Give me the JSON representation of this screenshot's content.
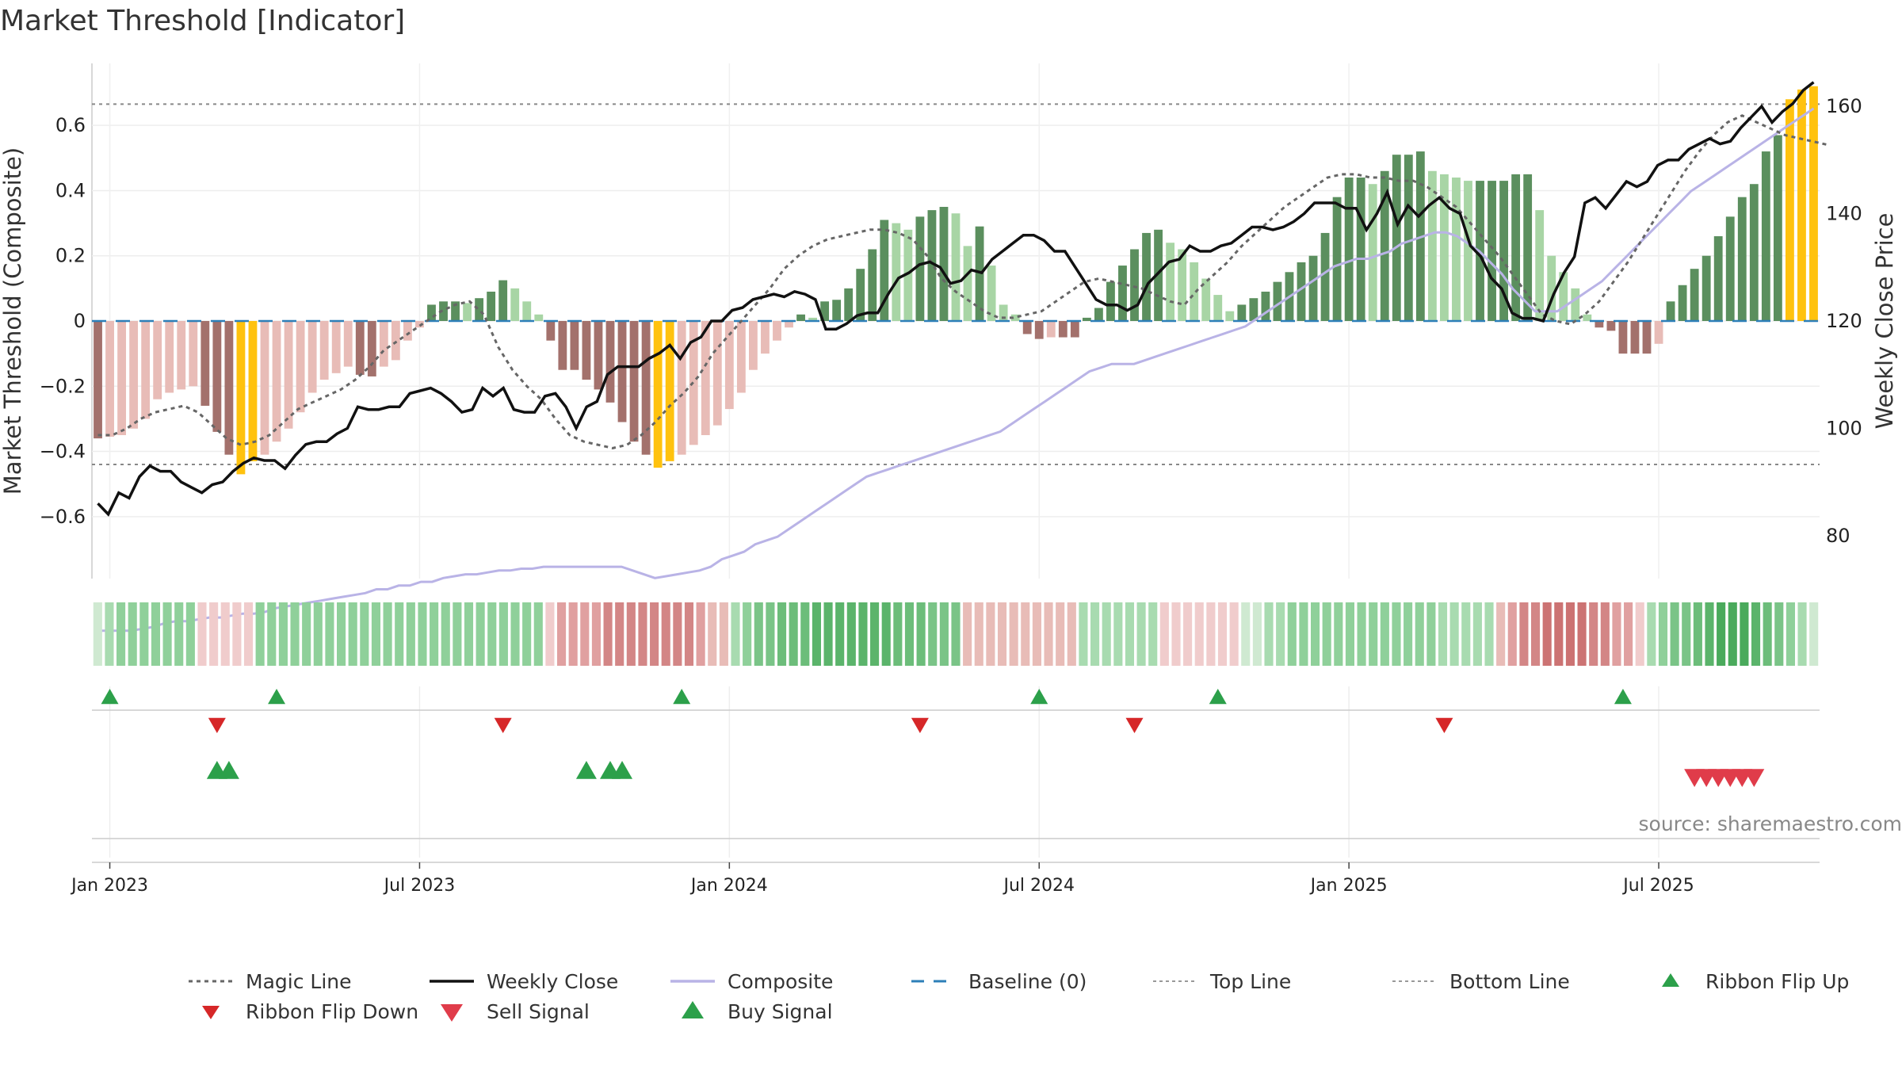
{
  "chart_data": {
    "type": "bar",
    "title": "Market Threshold [Indicator]",
    "y_left_label": "Market Threshold (Composite)",
    "y_right_label": "Weekly Close Price",
    "y_left_ticks": [
      "0.6",
      "0.4",
      "0.2",
      "0",
      "−0.2",
      "−0.4",
      "−0.6"
    ],
    "y_left_tick_values": [
      0.6,
      0.4,
      0.2,
      0,
      -0.2,
      -0.4,
      -0.6
    ],
    "y_right_ticks": [
      "160",
      "140",
      "120",
      "100",
      "80"
    ],
    "y_right_tick_values": [
      160,
      140,
      120,
      100,
      80
    ],
    "ylim_left": [
      -0.79,
      0.79
    ],
    "ylim_right": [
      72,
      168
    ],
    "x_ticks": [
      "Jan 2023",
      "Jul 2023",
      "Jan 2024",
      "Jul 2024",
      "Jan 2025",
      "Jul 2025"
    ],
    "x_tick_weeks": [
      1,
      27,
      53,
      79,
      105,
      131
    ],
    "top_line": 0.665,
    "bottom_line": -0.44,
    "baseline": 0,
    "grid": true,
    "weeks": 145,
    "composite_bars": [
      -0.36,
      -0.355,
      -0.35,
      -0.33,
      -0.3,
      -0.24,
      -0.22,
      -0.21,
      -0.2,
      -0.26,
      -0.34,
      -0.41,
      -0.47,
      -0.43,
      -0.41,
      -0.37,
      -0.33,
      -0.28,
      -0.22,
      -0.18,
      -0.16,
      -0.14,
      -0.165,
      -0.17,
      -0.14,
      -0.12,
      -0.06,
      -0.02,
      0.05,
      0.06,
      0.06,
      0.055,
      0.07,
      0.09,
      0.125,
      0.1,
      0.06,
      0.02,
      -0.06,
      -0.15,
      -0.15,
      -0.18,
      -0.21,
      -0.25,
      -0.31,
      -0.37,
      -0.41,
      -0.45,
      -0.43,
      -0.41,
      -0.38,
      -0.35,
      -0.32,
      -0.27,
      -0.22,
      -0.15,
      -0.1,
      -0.06,
      -0.02,
      0.02,
      0.01,
      0.06,
      0.065,
      0.1,
      0.16,
      0.22,
      0.31,
      0.3,
      0.28,
      0.32,
      0.34,
      0.35,
      0.33,
      0.23,
      0.29,
      0.17,
      0.05,
      0.02,
      -0.04,
      -0.055,
      -0.05,
      -0.05,
      -0.05,
      0.01,
      0.04,
      0.12,
      0.17,
      0.22,
      0.27,
      0.28,
      0.24,
      0.22,
      0.18,
      0.13,
      0.08,
      0.03,
      0.05,
      0.07,
      0.09,
      0.12,
      0.15,
      0.18,
      0.2,
      0.27,
      0.38,
      0.44,
      0.44,
      0.42,
      0.46,
      0.51,
      0.51,
      0.52,
      0.46,
      0.45,
      0.44,
      0.43,
      0.43,
      0.43,
      0.43,
      0.45,
      0.45,
      0.34,
      0.2,
      0.15,
      0.1,
      0.02,
      -0.02,
      -0.03,
      -0.1,
      -0.1,
      -0.1,
      -0.07,
      0.06,
      0.11,
      0.16,
      0.2,
      0.26,
      0.32,
      0.38,
      0.42,
      0.52,
      0.57,
      0.68,
      0.71,
      0.72,
      0.69,
      0.67,
      0.65,
      0.6,
      0.55,
      0.48,
      0.48
    ],
    "bar_colors": {
      "strong_up": "#5b8f5e",
      "weak_up": "#a8d5a5",
      "strong_down": "#a3716c",
      "weak_down": "#e8bcb7",
      "extreme": "#ffc20e"
    },
    "weekly_close": [
      86,
      84,
      88,
      87,
      91,
      93,
      92,
      92,
      90,
      89,
      88,
      89.5,
      90,
      92,
      93.5,
      94.5,
      94,
      94,
      92.5,
      95,
      97,
      97.5,
      97.5,
      99,
      100,
      104,
      103.5,
      103.5,
      104,
      104,
      106.5,
      107,
      107.5,
      106.5,
      105,
      103,
      103.5,
      107.5,
      106,
      107.5,
      103.5,
      103,
      103,
      106,
      106.5,
      104,
      100,
      104,
      105,
      110,
      111.5,
      111.5,
      111.5,
      113,
      114,
      115.5,
      113,
      116,
      117,
      120,
      120,
      122,
      122.5,
      124,
      124.5,
      125,
      124.5,
      125.5,
      125,
      124,
      118.5,
      118.5,
      119.5,
      121,
      121.5,
      121.5,
      125,
      128,
      129,
      130.5,
      131,
      130,
      127,
      127.5,
      129.5,
      129,
      131.5,
      133,
      134.5,
      136,
      136,
      135,
      133,
      133,
      130,
      127,
      124,
      123,
      123,
      122,
      123,
      127,
      129,
      131,
      131.5,
      134,
      133,
      133,
      134,
      134.5,
      136,
      137.5,
      137.5,
      137,
      137.5,
      138.5,
      140,
      142,
      142,
      142,
      141,
      141,
      137,
      140,
      144,
      138,
      141.5,
      139.5,
      141.5,
      143,
      141,
      140,
      134,
      132,
      128,
      126,
      121.5,
      120.5,
      120.5,
      120,
      125,
      129,
      132,
      142,
      143,
      141,
      143.5,
      146,
      145,
      146,
      149,
      150,
      150,
      152,
      153,
      154,
      153,
      153.5,
      156,
      158,
      160,
      157,
      159,
      160.5,
      163,
      164.5
    ],
    "weekly_close_color": "#111111",
    "composite_line": [
      0.89,
      0.89,
      0.89,
      0.89,
      0.895,
      0.9,
      0.91,
      0.915,
      0.915,
      0.92,
      0.925,
      0.925,
      0.93,
      0.935,
      0.935,
      0.94,
      0.95,
      0.955,
      0.96,
      0.965,
      0.97,
      0.975,
      0.98,
      0.985,
      0.99,
      1.0,
      1.0,
      1.01,
      1.01,
      1.02,
      1.02,
      1.03,
      1.035,
      1.04,
      1.04,
      1.045,
      1.05,
      1.05,
      1.055,
      1.055,
      1.06,
      1.06,
      1.06,
      1.06,
      1.06,
      1.06,
      1.06,
      1.06,
      1.05,
      1.04,
      1.03,
      1.035,
      1.04,
      1.045,
      1.05,
      1.06,
      1.08,
      1.09,
      1.1,
      1.12,
      1.13,
      1.14,
      1.16,
      1.18,
      1.2,
      1.22,
      1.24,
      1.26,
      1.28,
      1.3,
      1.31,
      1.32,
      1.33,
      1.34,
      1.35,
      1.36,
      1.37,
      1.38,
      1.39,
      1.4,
      1.41,
      1.42,
      1.44,
      1.46,
      1.48,
      1.5,
      1.52,
      1.54,
      1.56,
      1.58,
      1.59,
      1.6,
      1.6,
      1.6,
      1.61,
      1.62,
      1.63,
      1.64,
      1.65,
      1.66,
      1.67,
      1.68,
      1.69,
      1.7,
      1.72,
      1.74,
      1.76,
      1.78,
      1.8,
      1.82,
      1.84,
      1.86,
      1.87,
      1.88,
      1.88,
      1.89,
      1.9,
      1.92,
      1.93,
      1.94,
      1.95,
      1.95,
      1.94,
      1.92,
      1.9,
      1.87,
      1.84,
      1.8,
      1.77,
      1.74,
      1.74,
      1.74,
      1.76,
      1.78,
      1.8,
      1.82,
      1.85,
      1.88,
      1.91,
      1.94,
      1.97,
      2.0,
      2.03,
      2.06,
      2.08,
      2.1,
      2.12,
      2.14,
      2.16,
      2.18,
      2.2,
      2.22,
      2.24,
      2.26,
      2.28
    ],
    "composite_color": "#b9b3e6",
    "magic_line": [
      -0.35,
      -0.35,
      -0.33,
      -0.3,
      -0.28,
      -0.27,
      -0.26,
      -0.28,
      -0.32,
      -0.36,
      -0.38,
      -0.37,
      -0.35,
      -0.31,
      -0.27,
      -0.25,
      -0.23,
      -0.21,
      -0.18,
      -0.14,
      -0.09,
      -0.06,
      -0.03,
      0,
      0.03,
      0.05,
      0.06,
      0.02,
      -0.08,
      -0.15,
      -0.2,
      -0.24,
      -0.3,
      -0.35,
      -0.37,
      -0.38,
      -0.39,
      -0.38,
      -0.35,
      -0.31,
      -0.26,
      -0.22,
      -0.17,
      -0.1,
      -0.05,
      0,
      0.05,
      0.1,
      0.16,
      0.2,
      0.23,
      0.25,
      0.26,
      0.27,
      0.28,
      0.28,
      0.27,
      0.25,
      0.2,
      0.13,
      0.09,
      0.06,
      0.03,
      0.01,
      0.01,
      0.02,
      0.03,
      0.06,
      0.09,
      0.12,
      0.13,
      0.12,
      0.11,
      0.1,
      0.08,
      0.06,
      0.05,
      0.1,
      0.14,
      0.18,
      0.23,
      0.27,
      0.31,
      0.35,
      0.38,
      0.41,
      0.44,
      0.45,
      0.45,
      0.44,
      0.44,
      0.43,
      0.43,
      0.41,
      0.38,
      0.35,
      0.3,
      0.25,
      0.2,
      0.14,
      0.08,
      0.02,
      0,
      -0.01,
      0.02,
      0.06,
      0.12,
      0.18,
      0.25,
      0.32,
      0.39,
      0.46,
      0.52,
      0.57,
      0.61,
      0.63,
      0.61,
      0.59,
      0.57,
      0.56,
      0.55,
      0.54
    ],
    "magic_line_start_week": 0,
    "magic_line_step": 1.2,
    "ribbon_colors": [
      "#cfe9d1",
      "#a8dbb0",
      "#8fd09a",
      "#8fd09a",
      "#8fd09a",
      "#8fd09a",
      "#8fd09a",
      "#8fd09a",
      "#8fd09a",
      "#f0cccc",
      "#f0cccc",
      "#f0cccc",
      "#f0cccc",
      "#f0cccc",
      "#8fd09a",
      "#8fd09a",
      "#8fd09a",
      "#8fd09a",
      "#8fd09a",
      "#8fd09a",
      "#8fd09a",
      "#8fd09a",
      "#8fd09a",
      "#8fd09a",
      "#8fd09a",
      "#8fd09a",
      "#8fd09a",
      "#8fd09a",
      "#8fd09a",
      "#8fd09a",
      "#8fd09a",
      "#8fd09a",
      "#8fd09a",
      "#8fd09a",
      "#8fd09a",
      "#8fd09a",
      "#8fd09a",
      "#8fd09a",
      "#8fd09a",
      "#f0cccc",
      "#e0a0a0",
      "#e0a0a0",
      "#e0a0a0",
      "#e0a0a0",
      "#d38686",
      "#d38686",
      "#d38686",
      "#d38686",
      "#d38686",
      "#d38686",
      "#d38686",
      "#d38686",
      "#e0a0a0",
      "#e8bcb7",
      "#e8bcb7",
      "#a8dbb0",
      "#8fd09a",
      "#7ac487",
      "#7ac487",
      "#6cbd7a",
      "#6cbd7a",
      "#6cbd7a",
      "#5bb46b",
      "#5bb46b",
      "#5bb46b",
      "#5bb46b",
      "#5bb46b",
      "#5bb46b",
      "#5bb46b",
      "#6cbd7a",
      "#6cbd7a",
      "#6cbd7a",
      "#7ac487",
      "#7ac487",
      "#7ac487",
      "#e8bcb7",
      "#e8bcb7",
      "#e8bcb7",
      "#e8bcb7",
      "#e8bcb7",
      "#e8bcb7",
      "#e8bcb7",
      "#e8bcb7",
      "#e8bcb7",
      "#e8bcb7",
      "#a8dbb0",
      "#a8dbb0",
      "#a8dbb0",
      "#a8dbb0",
      "#a8dbb0",
      "#a8dbb0",
      "#a8dbb0",
      "#f0cccc",
      "#f0cccc",
      "#f0cccc",
      "#f0cccc",
      "#f0cccc",
      "#f0cccc",
      "#f0cccc",
      "#cfe9d1",
      "#cfe9d1",
      "#a8dbb0",
      "#a8dbb0",
      "#8fd09a",
      "#8fd09a",
      "#8fd09a",
      "#8fd09a",
      "#8fd09a",
      "#8fd09a",
      "#8fd09a",
      "#8fd09a",
      "#8fd09a",
      "#8fd09a",
      "#8fd09a",
      "#8fd09a",
      "#8fd09a",
      "#a8dbb0",
      "#a8dbb0",
      "#a8dbb0",
      "#a8dbb0",
      "#a8dbb0",
      "#e8bcb7",
      "#e0a0a0",
      "#d38686",
      "#d38686",
      "#cc7373",
      "#cc7373",
      "#cc7373",
      "#cc7373",
      "#d38686",
      "#d38686",
      "#e0a0a0",
      "#e0a0a0",
      "#f0cccc",
      "#a8dbb0",
      "#8fd09a",
      "#7ac487",
      "#7ac487",
      "#6cbd7a",
      "#5bb46b",
      "#4aaa5c",
      "#4aaa5c",
      "#4aaa5c",
      "#5bb46b",
      "#6cbd7a",
      "#7ac487",
      "#8fd09a",
      "#a8dbb0",
      "#cfe9d1"
    ],
    "ribbon_flip_up_weeks": [
      1,
      15,
      49,
      79,
      94,
      128
    ],
    "ribbon_flip_down_weeks": [
      10,
      34,
      69,
      87,
      113
    ],
    "buy_signal_weeks": [
      10,
      11,
      41,
      43,
      44
    ],
    "sell_signal_weeks": [
      134,
      135,
      136,
      137,
      138,
      139
    ],
    "legend": [
      {
        "label": "Magic Line",
        "kind": "dotted",
        "color": "#666666"
      },
      {
        "label": "Weekly Close",
        "kind": "solid",
        "color": "#111111"
      },
      {
        "label": "Composite",
        "kind": "solid",
        "color": "#b9b3e6"
      },
      {
        "label": "Baseline (0)",
        "kind": "dashed",
        "color": "#2d7fb8"
      },
      {
        "label": "Top Line",
        "kind": "dotted-gray",
        "color": "#999999"
      },
      {
        "label": "Bottom Line",
        "kind": "dotted-gray",
        "color": "#999999"
      },
      {
        "label": "Ribbon Flip Up",
        "kind": "up-tri",
        "color": "#2ca04a"
      },
      {
        "label": "Ribbon Flip Down",
        "kind": "down-tri",
        "color": "#d62728"
      },
      {
        "label": "Sell Signal",
        "kind": "down-tri-big",
        "color": "#e03c4a"
      },
      {
        "label": "Buy Signal",
        "kind": "up-tri-big",
        "color": "#2ca04a"
      }
    ],
    "source_text": "source: sharemaestro.com"
  }
}
